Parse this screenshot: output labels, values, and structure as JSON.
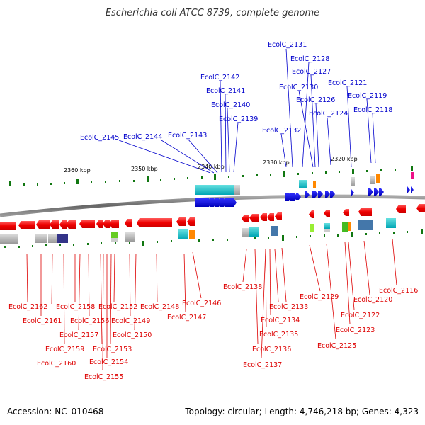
{
  "title": "Escherichia coli ATCC 8739, complete genome",
  "footer": {
    "accession": "Accession: NC_010468",
    "topology": "Topology: circular; Length: 4,746,218 bp; Genes: 4,323"
  },
  "colors": {
    "forward": "#0000cc",
    "reverse": "#dd0000",
    "backbone": "#808080",
    "tick": "#117711"
  },
  "scale_ticks": [
    {
      "label": "2360 kbp"
    },
    {
      "label": "2350 kbp"
    },
    {
      "label": "2340 kbp"
    },
    {
      "label": "2330 kbp"
    },
    {
      "label": "2320 kbp"
    }
  ],
  "forward_genes": [
    {
      "label": "EcolC_2131"
    },
    {
      "label": "EcolC_2128"
    },
    {
      "label": "EcolC_2127"
    },
    {
      "label": "EcolC_2130"
    },
    {
      "label": "EcolC_2126"
    },
    {
      "label": "EcolC_2124"
    },
    {
      "label": "EcolC_2132"
    },
    {
      "label": "EcolC_2121"
    },
    {
      "label": "EcolC_2119"
    },
    {
      "label": "EcolC_2118"
    },
    {
      "label": "EcolC_2142"
    },
    {
      "label": "EcolC_2141"
    },
    {
      "label": "EcolC_2140"
    },
    {
      "label": "EcolC_2139"
    },
    {
      "label": "EcolC_2145"
    },
    {
      "label": "EcolC_2144"
    },
    {
      "label": "EcolC_2143"
    }
  ],
  "reverse_genes": [
    {
      "label": "EcolC_2162"
    },
    {
      "label": "EcolC_2161"
    },
    {
      "label": "EcolC_2158"
    },
    {
      "label": "EcolC_2156"
    },
    {
      "label": "EcolC_2157"
    },
    {
      "label": "EcolC_2159"
    },
    {
      "label": "EcolC_2160"
    },
    {
      "label": "EcolC_2152"
    },
    {
      "label": "EcolC_2153"
    },
    {
      "label": "EcolC_2154"
    },
    {
      "label": "EcolC_2155"
    },
    {
      "label": "EcolC_2149"
    },
    {
      "label": "EcolC_2150"
    },
    {
      "label": "EcolC_2148"
    },
    {
      "label": "EcolC_2146"
    },
    {
      "label": "EcolC_2147"
    },
    {
      "label": "EcolC_2138"
    },
    {
      "label": "EcolC_2133"
    },
    {
      "label": "EcolC_2134"
    },
    {
      "label": "EcolC_2135"
    },
    {
      "label": "EcolC_2136"
    },
    {
      "label": "EcolC_2137"
    },
    {
      "label": "EcolC_2129"
    },
    {
      "label": "EcolC_2125"
    },
    {
      "label": "EcolC_2123"
    },
    {
      "label": "EcolC_2122"
    },
    {
      "label": "EcolC_2120"
    },
    {
      "label": "EcolC_2116"
    }
  ]
}
